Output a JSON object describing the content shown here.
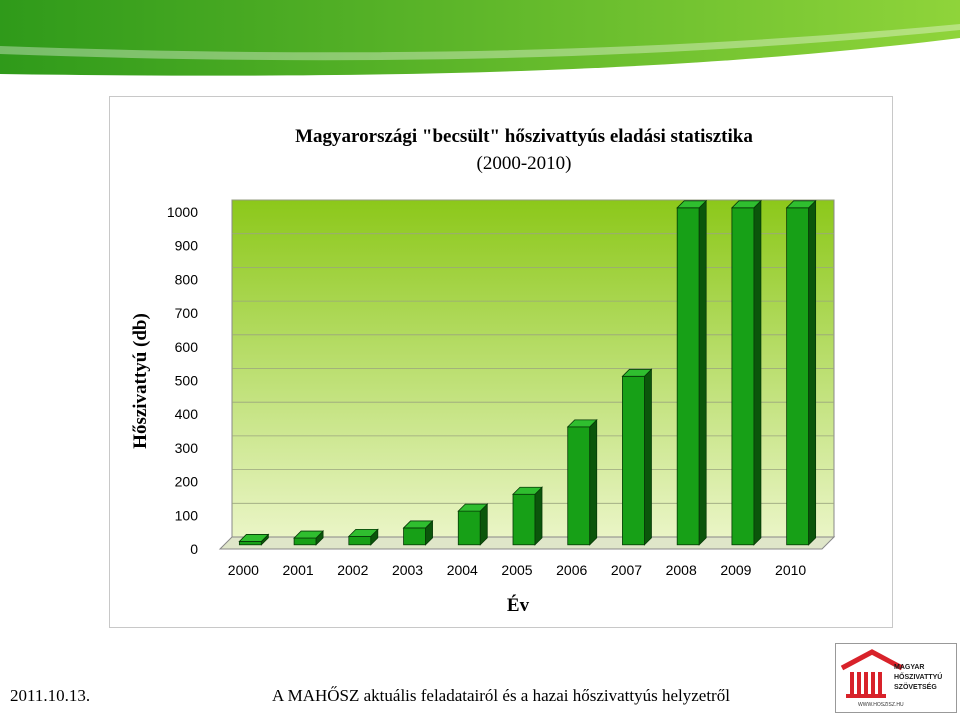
{
  "colors": {
    "banner_green": "#2f9a1a",
    "banner_light": "#8fd43a",
    "plot_top": "#8cc81a",
    "plot_bottom": "#eaf5c6",
    "bar_front": "#17a017",
    "bar_side": "#0b560b",
    "bar_top": "#2fbe2f",
    "logo_red": "#d8222a"
  },
  "chart_data": {
    "type": "bar",
    "title": "Magyarországi \"becsült\" hőszivattyús eladási statisztika",
    "subtitle": "(2000-2010)",
    "xlabel": "Év",
    "ylabel": "Hőszivattyú (db)",
    "categories": [
      "2000",
      "2001",
      "2002",
      "2003",
      "2004",
      "2005",
      "2006",
      "2007",
      "2008",
      "2009",
      "2010"
    ],
    "values": [
      10,
      20,
      25,
      50,
      100,
      150,
      350,
      500,
      1000,
      1000,
      1000
    ],
    "ylim": [
      0,
      1000
    ],
    "yticks": [
      "0",
      "100",
      "200",
      "300",
      "400",
      "500",
      "600",
      "700",
      "800",
      "900",
      "1000"
    ],
    "grid": true,
    "legend": "none"
  },
  "footer": {
    "date": "2011.10.13.",
    "caption": "A MAHŐSZ aktuális feladatairól és a hazai hőszivattyús helyzetről"
  },
  "logo": {
    "line1": "MAGYAR",
    "line2": "HŐSZIVATTYÚ",
    "line3": "SZÖVETSÉG",
    "url": "WWW.HOSZISZ.HU"
  }
}
